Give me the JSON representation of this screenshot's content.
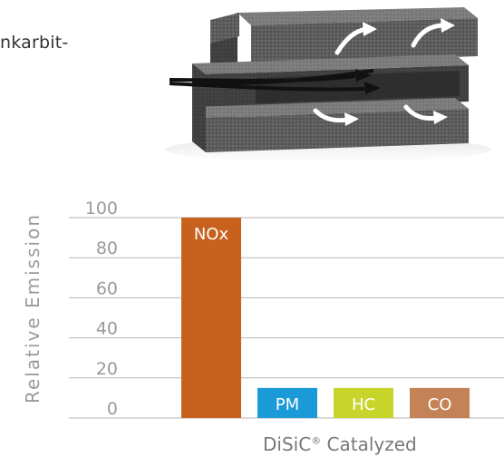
{
  "text_fragment": "nkarbit-",
  "chart_data": {
    "type": "bar",
    "categories": [
      "NOx",
      "PM",
      "HC",
      "CO"
    ],
    "values": [
      100,
      15,
      15,
      15
    ],
    "colors": [
      "#c8611e",
      "#1a9ad6",
      "#c7d52b",
      "#c38356"
    ],
    "ylabel": "Relative Emission",
    "xlabel": {
      "text": "DiSiC",
      "mark": "®",
      "suffix": " Catalyzed"
    },
    "yticks": [
      0,
      20,
      40,
      60,
      80,
      100
    ],
    "ylim": [
      0,
      100
    ],
    "grid": true
  },
  "illustration": {
    "name": "silicon-carbide-filter-illustration",
    "body_color": "#5b5b5b",
    "arrow_color": "#ffffff"
  }
}
